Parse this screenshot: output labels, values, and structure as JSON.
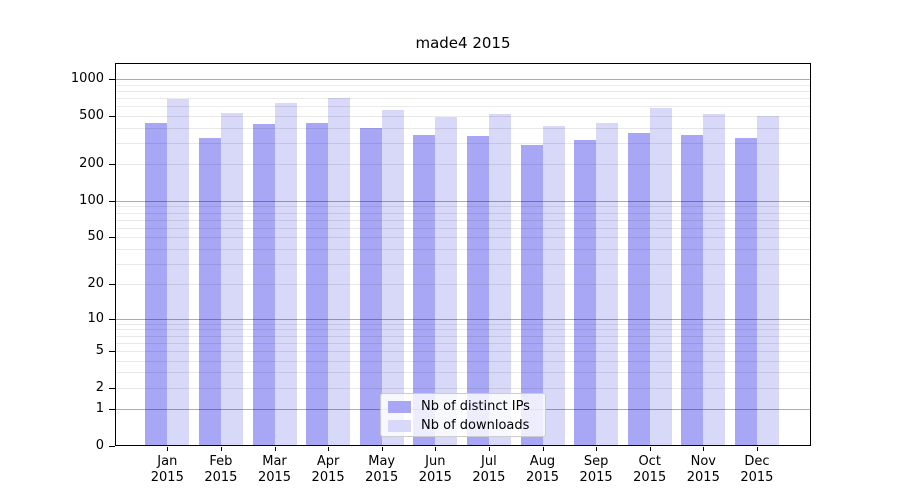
{
  "chart_data": {
    "type": "bar",
    "title": "made4 2015",
    "categories": [
      {
        "month": "Jan",
        "year": "2015"
      },
      {
        "month": "Feb",
        "year": "2015"
      },
      {
        "month": "Mar",
        "year": "2015"
      },
      {
        "month": "Apr",
        "year": "2015"
      },
      {
        "month": "May",
        "year": "2015"
      },
      {
        "month": "Jun",
        "year": "2015"
      },
      {
        "month": "Jul",
        "year": "2015"
      },
      {
        "month": "Aug",
        "year": "2015"
      },
      {
        "month": "Sep",
        "year": "2015"
      },
      {
        "month": "Oct",
        "year": "2015"
      },
      {
        "month": "Nov",
        "year": "2015"
      },
      {
        "month": "Dec",
        "year": "2015"
      }
    ],
    "series": [
      {
        "name": "Nb of distinct IPs",
        "color": "#a7a7f5",
        "values": [
          440,
          330,
          425,
          440,
          400,
          350,
          340,
          290,
          315,
          360,
          350,
          330
        ]
      },
      {
        "name": "Nb of downloads",
        "color": "#d8d8f8",
        "values": [
          690,
          530,
          635,
          695,
          560,
          490,
          515,
          415,
          435,
          580,
          515,
          500
        ]
      }
    ],
    "xlabel": "",
    "ylabel": "",
    "y_axis": {
      "scale": "log10(1+x)",
      "tick_values": [
        0,
        1,
        2,
        5,
        10,
        20,
        50,
        100,
        200,
        500,
        1000
      ],
      "major_gridlines": [
        1,
        10,
        100,
        1000
      ],
      "minor_gridlines": "2-9 per decade up to 900",
      "range_top": 1350
    },
    "legend": {
      "position": "bottom-center",
      "frame": true
    },
    "grid": true
  },
  "colors": {
    "background": "#ffffff",
    "axis_frame": "#000000",
    "text": "#000000",
    "legend_border": "#cccccc"
  }
}
